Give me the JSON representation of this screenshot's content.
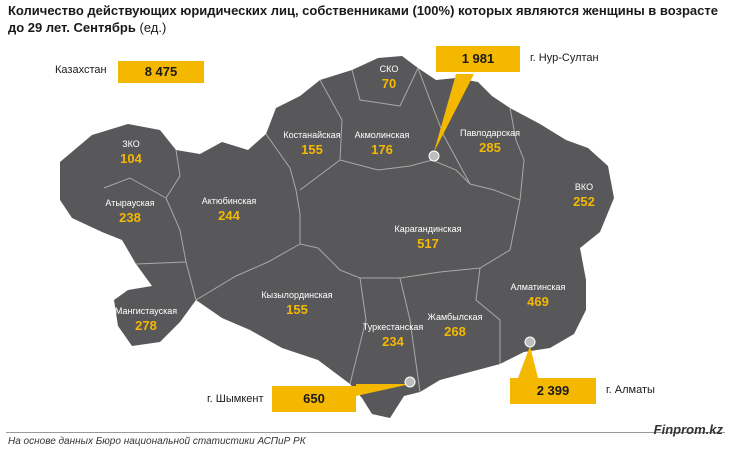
{
  "title": "Количество действующих юридических лиц, собственниками (100%) которых являются женщины в возрасте до 29 лет. Сентябрь",
  "unit": "(ед.)",
  "total": {
    "label": "Казахстан",
    "value": "8 475"
  },
  "regions": [
    {
      "name": "СКО",
      "value": "70"
    },
    {
      "name": "Костанайская",
      "value": "155"
    },
    {
      "name": "Акмолинская",
      "value": "176"
    },
    {
      "name": "Павлодарская",
      "value": "285"
    },
    {
      "name": "ЗКО",
      "value": "104"
    },
    {
      "name": "Атырауская",
      "value": "238"
    },
    {
      "name": "Актюбинская",
      "value": "244"
    },
    {
      "name": "ВКО",
      "value": "252"
    },
    {
      "name": "Карагандинская",
      "value": "517"
    },
    {
      "name": "Мангистауская",
      "value": "278"
    },
    {
      "name": "Кызылординская",
      "value": "155"
    },
    {
      "name": "Алматинская",
      "value": "469"
    },
    {
      "name": "Жамбылская",
      "value": "268"
    },
    {
      "name": "Туркестанская",
      "value": "234"
    }
  ],
  "cities": [
    {
      "name": "г. Нур-Султан",
      "value": "1 981"
    },
    {
      "name": "г. Шымкент",
      "value": "650"
    },
    {
      "name": "г. Алматы",
      "value": "2 399"
    }
  ],
  "colors": {
    "map_fill": "#58585a",
    "border": "#a9a9a9",
    "accent": "#f5b800",
    "city_marker": "#bdbdbd"
  },
  "footer": {
    "source": "На основе данных Бюро национальной статистики АСПиР РК",
    "brand": "Finprom.kz"
  }
}
